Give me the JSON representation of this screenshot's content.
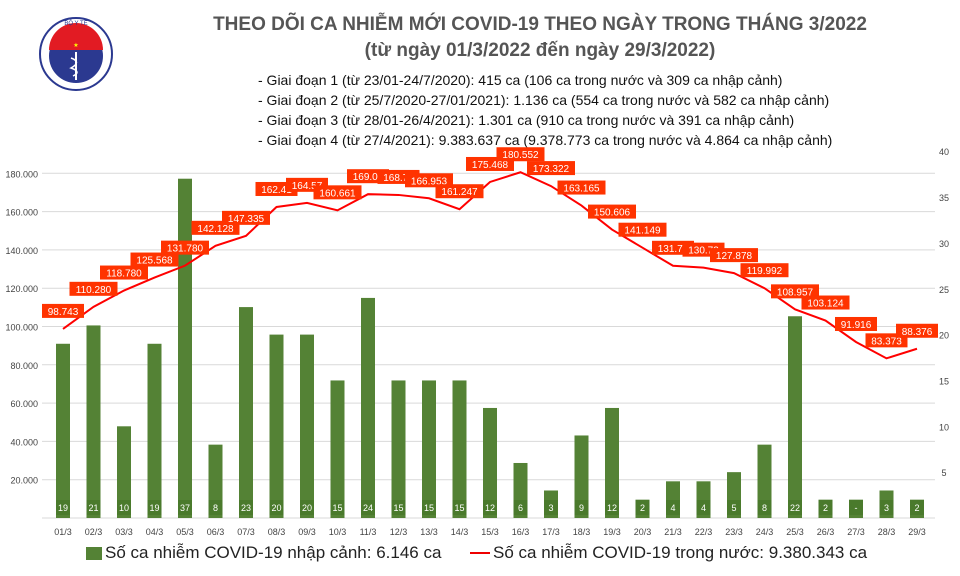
{
  "header": {
    "title": "THEO DÕI CA NHIỄM MỚI COVID-19 THEO NGÀY TRONG THÁNG 3/2022",
    "subtitle": "(từ ngày 01/3/2022 đến ngày 29/3/2022)",
    "phases": [
      "- Giai đoạn 1 (từ 23/01-24/7/2020): 415 ca (106 ca trong nước và 309 ca nhập cảnh)",
      "- Giai đoạn 2 (từ 25/7/2020-27/01/2021): 1.136 ca (554 ca trong nước và 582 ca nhập cảnh)",
      "- Giai đoạn 3 (từ 28/01-26/4/2021): 1.301 ca (910 ca trong nước và 391 ca nhập cảnh)",
      "- Giai đoạn 4 (từ 27/4/2021): 9.383.637 ca (9.378.773 ca trong nước và 4.864 ca nhập cảnh)"
    ],
    "logo_text": "BỘ Y TẾ MINISTRY OF HEALTH"
  },
  "chart_data": {
    "type": "bar+line",
    "categories": [
      "01/3",
      "02/3",
      "03/3",
      "04/3",
      "05/3",
      "06/3",
      "07/3",
      "08/3",
      "09/3",
      "10/3",
      "11/3",
      "12/3",
      "13/3",
      "14/3",
      "15/3",
      "16/3",
      "17/3",
      "18/3",
      "19/3",
      "20/3",
      "21/3",
      "22/3",
      "23/3",
      "24/3",
      "25/3",
      "26/3",
      "27/3",
      "28/3",
      "29/3"
    ],
    "series": [
      {
        "name": "Số ca nhiễm COVID-19 nhập cảnh: 6.146 ca",
        "type": "bar",
        "axis": "right",
        "color": "#548235",
        "values": [
          19,
          21,
          10,
          19,
          37,
          8,
          23,
          20,
          20,
          15,
          24,
          15,
          15,
          15,
          12,
          6,
          3,
          9,
          12,
          2,
          4,
          4,
          5,
          8,
          22,
          2,
          2,
          3,
          2
        ],
        "labels": [
          "19",
          "21",
          "10",
          "19",
          "37",
          "8",
          "23",
          "20",
          "20",
          "15",
          "24",
          "15",
          "15",
          "15",
          "12",
          "6",
          "3",
          "9",
          "12",
          "2",
          "4",
          "4",
          "5",
          "8",
          "22",
          "2",
          "-",
          "3",
          "2"
        ]
      },
      {
        "name": "Số ca nhiễm COVID-19 trong nước: 9.380.343 ca",
        "type": "line",
        "axis": "left",
        "color": "#ff0000",
        "values": [
          98743,
          110280,
          118780,
          125568,
          131780,
          142128,
          147335,
          162410,
          164570,
          160661,
          169090,
          168700,
          166953,
          161247,
          175468,
          180552,
          173322,
          163165,
          150606,
          141149,
          131700,
          130730,
          127878,
          119992,
          108957,
          103124,
          91916,
          83373,
          88376
        ],
        "labels": [
          "98.743",
          "110.280",
          "118.780",
          "125.568",
          "131.780",
          "142.128",
          "147.335",
          "162.41",
          "164.57",
          "160.661",
          "169.09",
          "168.70",
          "166.953",
          "161.247",
          "175.468",
          "180.552",
          "173.322",
          "163.165",
          "150.606",
          "141.149",
          "131.70",
          "130.73",
          "127.878",
          "119.992",
          "108.957",
          "103.124",
          "91.916",
          "83.373",
          "88.376"
        ]
      }
    ],
    "left_axis": {
      "range": [
        0,
        180000
      ],
      "ticks": [
        "20.000",
        "40.000",
        "60.000",
        "80.000",
        "100.000",
        "120.000",
        "140.000",
        "160.000",
        "180.000"
      ]
    },
    "right_axis": {
      "range": [
        0,
        40
      ],
      "ticks": [
        "5",
        "10",
        "15",
        "20",
        "25",
        "30",
        "35",
        "40"
      ]
    },
    "grid": true,
    "legend_position": "bottom"
  }
}
